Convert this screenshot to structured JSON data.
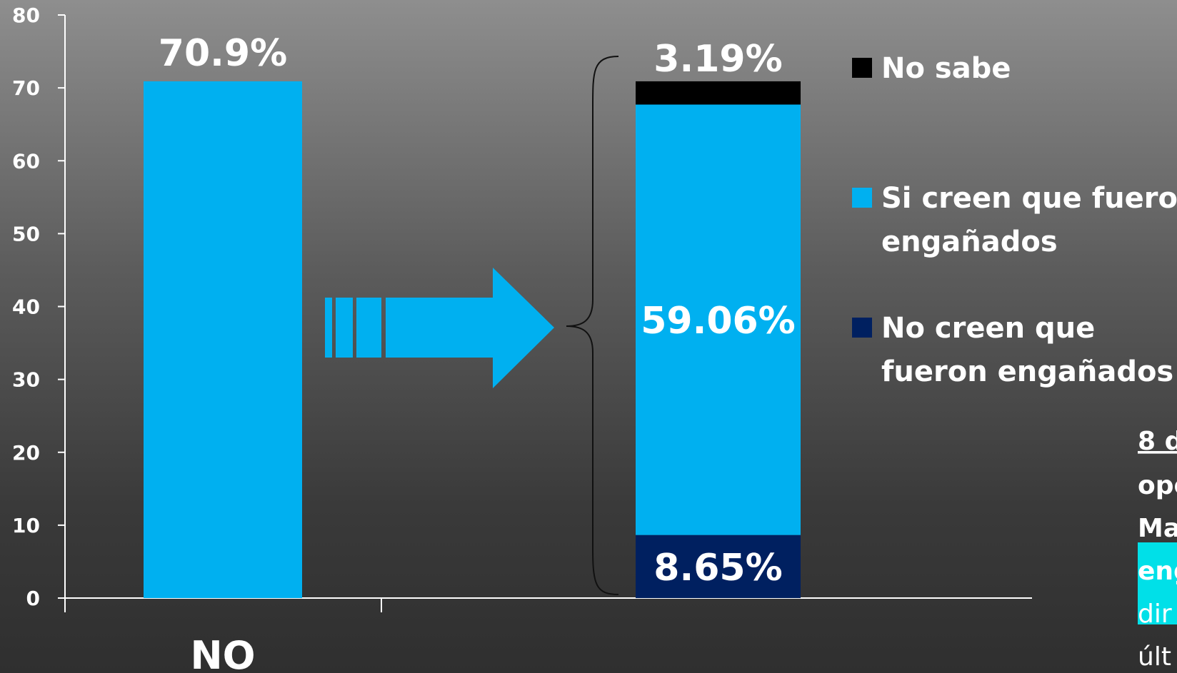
{
  "chart_data": {
    "type": "bar",
    "ylim": [
      0,
      80
    ],
    "yticks": [
      0,
      10,
      20,
      30,
      40,
      50,
      60,
      70,
      80
    ],
    "grid": false,
    "categories": [
      "NO"
    ],
    "values": [
      70.9
    ],
    "value_labels": [
      "70.9%"
    ],
    "bar_color": "#00b0f0",
    "breakdown": {
      "total": 70.9,
      "segments": [
        {
          "name": "No creen que fueron engañados",
          "legend_lines": [
            "No creen que",
            "fueron engañados"
          ],
          "value": 8.65,
          "label": "8.65%",
          "color": "#002060"
        },
        {
          "name": "Si creen que fueron engañados",
          "legend_lines": [
            "Si creen que fueron",
            "engañados"
          ],
          "value": 59.06,
          "label": "59.06%",
          "color": "#00b0f0"
        },
        {
          "name": "No sabe",
          "legend_lines": [
            "No sabe"
          ],
          "value": 3.19,
          "label": "3.19%",
          "color": "#000000"
        }
      ]
    },
    "legend_position": "right"
  },
  "note_fragments": [
    "8 d",
    "ope",
    "Ma",
    "eng",
    "dir",
    "últ"
  ],
  "colors": {
    "accent": "#00b0f0",
    "navy": "#002060",
    "highlight": "#00e0e8"
  }
}
